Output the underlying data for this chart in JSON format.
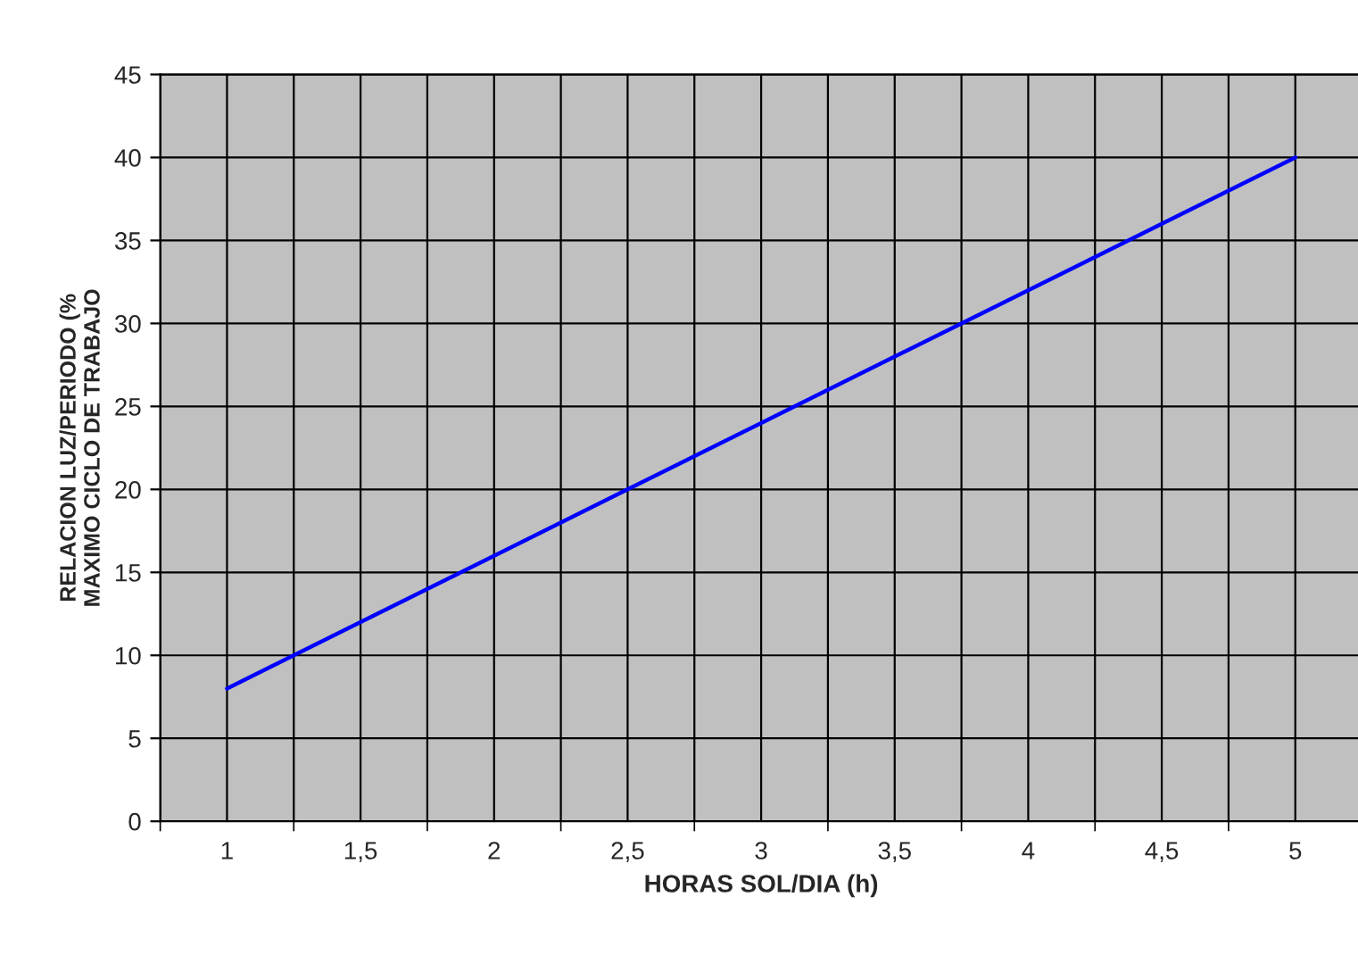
{
  "chart_data": {
    "type": "line",
    "xlabel": "HORAS SOL/DIA (h)",
    "ylabel": "RELACION LUZ/PERIODO (%\nMAXIMO CICLO DE TRABAJO",
    "categories": [
      "1",
      "1,5",
      "2",
      "2,5",
      "3",
      "3,5",
      "4",
      "4,5",
      "5"
    ],
    "series": [
      {
        "color": "#0000ff",
        "values": [
          8,
          12,
          16,
          20,
          24,
          28,
          32,
          36,
          40
        ]
      }
    ],
    "ylim": [
      0,
      45
    ],
    "yticks": [
      0,
      5,
      10,
      15,
      20,
      25,
      30,
      35,
      40,
      45
    ],
    "grid": true,
    "legend": false,
    "marker": "none",
    "line_style": "solid"
  }
}
